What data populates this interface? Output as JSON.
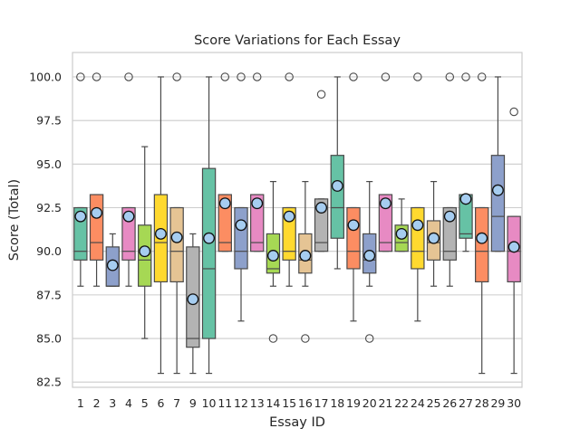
{
  "chart_data": {
    "type": "box",
    "title": "Score Variations for Each Essay",
    "xlabel": "Essay ID",
    "ylabel": "Score (Total)",
    "ylim": [
      82.2,
      101.4
    ],
    "yticks": [
      82.5,
      85.0,
      87.5,
      90.0,
      92.5,
      95.0,
      97.5,
      100.0
    ],
    "ytick_labels": [
      "82.5",
      "85.0",
      "87.5",
      "90.0",
      "92.5",
      "95.0",
      "97.5",
      "100.0"
    ],
    "grid": true,
    "legend": "none",
    "categories": [
      "1",
      "2",
      "3",
      "4",
      "5",
      "6",
      "7",
      "9",
      "10",
      "11",
      "12",
      "13",
      "14",
      "15",
      "16",
      "17",
      "18",
      "19",
      "20",
      "21",
      "22",
      "24",
      "25",
      "26",
      "27",
      "28",
      "29",
      "30"
    ],
    "palette": [
      "#66c2a5",
      "#fc8d62",
      "#8da0cb",
      "#e78ac3",
      "#a6d854",
      "#ffd92f",
      "#e5c494",
      "#b3b3b3"
    ],
    "mean_marker_color": "#a6cdf0",
    "boxes": [
      {
        "id": "1",
        "q1": 89.5,
        "median": 90.0,
        "q3": 92.5,
        "whislo": 88.0,
        "whishi": 92.5,
        "mean": 92.0,
        "fliers": [
          100.0
        ]
      },
      {
        "id": "2",
        "q1": 89.5,
        "median": 90.5,
        "q3": 93.25,
        "whislo": 88.0,
        "whishi": 93.25,
        "mean": 92.2,
        "fliers": [
          100.0
        ]
      },
      {
        "id": "3",
        "q1": 88.0,
        "median": 88.0,
        "q3": 90.25,
        "whislo": 88.0,
        "whishi": 91.0,
        "mean": 89.2,
        "fliers": []
      },
      {
        "id": "4",
        "q1": 89.5,
        "median": 90.0,
        "q3": 92.5,
        "whislo": 88.0,
        "whishi": 92.5,
        "mean": 92.0,
        "fliers": [
          100.0
        ]
      },
      {
        "id": "5",
        "q1": 88.0,
        "median": 89.5,
        "q3": 91.5,
        "whislo": 85.0,
        "whishi": 96.0,
        "mean": 90.0,
        "fliers": []
      },
      {
        "id": "6",
        "q1": 88.25,
        "median": 90.5,
        "q3": 93.25,
        "whislo": 83.0,
        "whishi": 100.0,
        "mean": 91.0,
        "fliers": []
      },
      {
        "id": "7",
        "q1": 88.25,
        "median": 90.0,
        "q3": 92.5,
        "whislo": 83.0,
        "whishi": 92.5,
        "mean": 90.8,
        "fliers": [
          100.0
        ]
      },
      {
        "id": "9",
        "q1": 84.5,
        "median": 85.0,
        "q3": 90.25,
        "whislo": 83.0,
        "whishi": 91.0,
        "mean": 87.25,
        "fliers": []
      },
      {
        "id": "10",
        "q1": 85.0,
        "median": 89.0,
        "q3": 94.75,
        "whislo": 83.0,
        "whishi": 100.0,
        "mean": 90.75,
        "fliers": []
      },
      {
        "id": "11",
        "q1": 90.0,
        "median": 90.5,
        "q3": 93.25,
        "whislo": 90.0,
        "whishi": 93.25,
        "mean": 92.75,
        "fliers": [
          100.0
        ]
      },
      {
        "id": "12",
        "q1": 89.0,
        "median": 90.0,
        "q3": 92.5,
        "whislo": 86.0,
        "whishi": 92.5,
        "mean": 91.5,
        "fliers": [
          100.0
        ]
      },
      {
        "id": "13",
        "q1": 90.0,
        "median": 90.5,
        "q3": 93.25,
        "whislo": 90.0,
        "whishi": 93.25,
        "mean": 92.75,
        "fliers": [
          100.0
        ]
      },
      {
        "id": "14",
        "q1": 88.75,
        "median": 89.0,
        "q3": 91.0,
        "whislo": 88.0,
        "whishi": 94.0,
        "mean": 89.75,
        "fliers": [
          85.0
        ]
      },
      {
        "id": "15",
        "q1": 89.5,
        "median": 90.0,
        "q3": 92.5,
        "whislo": 88.0,
        "whishi": 92.5,
        "mean": 92.0,
        "fliers": [
          100.0
        ]
      },
      {
        "id": "16",
        "q1": 88.75,
        "median": 89.5,
        "q3": 91.0,
        "whislo": 88.0,
        "whishi": 94.0,
        "mean": 89.75,
        "fliers": [
          85.0
        ]
      },
      {
        "id": "17",
        "q1": 90.0,
        "median": 90.5,
        "q3": 93.0,
        "whislo": 90.0,
        "whishi": 93.0,
        "mean": 92.5,
        "fliers": [
          99.0
        ]
      },
      {
        "id": "18",
        "q1": 90.75,
        "median": 92.5,
        "q3": 95.5,
        "whislo": 89.0,
        "whishi": 100.0,
        "mean": 93.75,
        "fliers": []
      },
      {
        "id": "19",
        "q1": 89.0,
        "median": 90.0,
        "q3": 92.5,
        "whislo": 86.0,
        "whishi": 92.5,
        "mean": 91.5,
        "fliers": [
          100.0
        ]
      },
      {
        "id": "20",
        "q1": 88.75,
        "median": 89.5,
        "q3": 91.0,
        "whislo": 88.0,
        "whishi": 94.0,
        "mean": 89.75,
        "fliers": [
          85.0
        ]
      },
      {
        "id": "21",
        "q1": 90.0,
        "median": 90.5,
        "q3": 93.25,
        "whislo": 90.0,
        "whishi": 93.25,
        "mean": 92.75,
        "fliers": [
          100.0
        ]
      },
      {
        "id": "22",
        "q1": 90.0,
        "median": 90.5,
        "q3": 91.5,
        "whislo": 90.0,
        "whishi": 93.0,
        "mean": 91.0,
        "fliers": []
      },
      {
        "id": "24",
        "q1": 89.0,
        "median": 90.0,
        "q3": 92.5,
        "whislo": 86.0,
        "whishi": 92.5,
        "mean": 91.5,
        "fliers": [
          100.0
        ]
      },
      {
        "id": "25",
        "q1": 89.5,
        "median": 90.5,
        "q3": 91.75,
        "whislo": 88.0,
        "whishi": 94.0,
        "mean": 90.75,
        "fliers": []
      },
      {
        "id": "26",
        "q1": 89.5,
        "median": 90.0,
        "q3": 92.5,
        "whislo": 88.0,
        "whishi": 92.5,
        "mean": 92.0,
        "fliers": [
          100.0
        ]
      },
      {
        "id": "27",
        "q1": 90.75,
        "median": 91.0,
        "q3": 93.25,
        "whislo": 90.0,
        "whishi": 93.25,
        "mean": 93.0,
        "fliers": [
          100.0
        ]
      },
      {
        "id": "28",
        "q1": 88.25,
        "median": 90.0,
        "q3": 92.5,
        "whislo": 83.0,
        "whishi": 92.5,
        "mean": 90.75,
        "fliers": [
          100.0
        ]
      },
      {
        "id": "29",
        "q1": 90.0,
        "median": 92.0,
        "q3": 95.5,
        "whislo": 90.0,
        "whishi": 100.0,
        "mean": 93.5,
        "fliers": []
      },
      {
        "id": "30",
        "q1": 88.25,
        "median": 90.0,
        "q3": 92.0,
        "whislo": 83.0,
        "whishi": 92.0,
        "mean": 90.25,
        "fliers": [
          98.0
        ]
      }
    ]
  }
}
